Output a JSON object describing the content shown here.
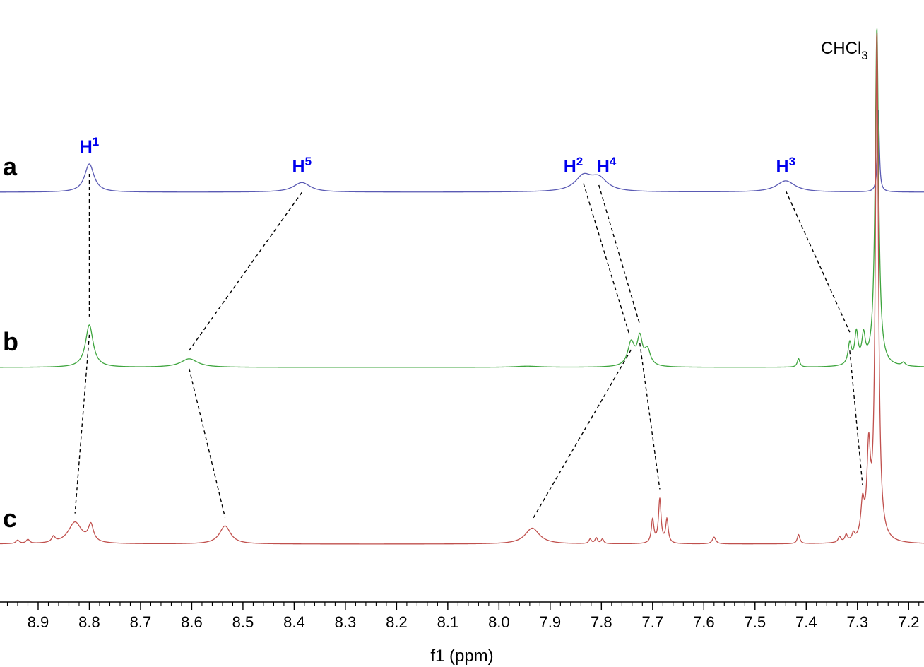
{
  "chart_data": {
    "type": "line",
    "xlabel": "f1 (ppm)",
    "xlim": [
      8.98,
      7.17
    ],
    "x_reversed": true,
    "ticks": [
      "8.9",
      "8.8",
      "8.7",
      "8.6",
      "8.5",
      "8.4",
      "8.3",
      "8.2",
      "8.1",
      "8.0",
      "7.9",
      "7.8",
      "7.7",
      "7.6",
      "7.5",
      "7.4",
      "7.3",
      "7.2"
    ],
    "grid": false,
    "solvent_label": {
      "text": "CHCl",
      "sub": "3",
      "ppm": 7.26
    },
    "peak_label_color": "#0000ee",
    "series": [
      {
        "label": "a",
        "color": "#5a5ab4",
        "baseline": 0.0,
        "peaks": [
          {
            "ppm": 8.8,
            "h": 0.5,
            "w": 0.011
          },
          {
            "ppm": 8.385,
            "h": 0.17,
            "w": 0.02
          },
          {
            "ppm": 7.835,
            "h": 0.26,
            "w": 0.02
          },
          {
            "ppm": 7.805,
            "h": 0.22,
            "w": 0.02
          },
          {
            "ppm": 7.44,
            "h": 0.2,
            "w": 0.022
          },
          {
            "ppm": 7.259,
            "h": 1.45,
            "w": 0.0022
          }
        ],
        "peak_labels": [
          {
            "text": "H",
            "sup": "1",
            "ppm": 8.8
          },
          {
            "text": "H",
            "sup": "5",
            "ppm": 8.385
          },
          {
            "text": "H",
            "sup": "2",
            "ppm": 7.855
          },
          {
            "text": "H",
            "sup": "4",
            "ppm": 7.79
          },
          {
            "text": "H",
            "sup": "3",
            "ppm": 7.44
          }
        ]
      },
      {
        "label": "b",
        "color": "#3ea53e",
        "baseline": 0.0,
        "peaks": [
          {
            "ppm": 8.8,
            "h": 0.75,
            "w": 0.009
          },
          {
            "ppm": 8.605,
            "h": 0.15,
            "w": 0.02
          },
          {
            "ppm": 7.945,
            "h": 0.02,
            "w": 0.03
          },
          {
            "ppm": 7.742,
            "h": 0.42,
            "w": 0.008
          },
          {
            "ppm": 7.725,
            "h": 0.48,
            "w": 0.006
          },
          {
            "ppm": 7.71,
            "h": 0.28,
            "w": 0.007
          },
          {
            "ppm": 7.415,
            "h": 0.15,
            "w": 0.003
          },
          {
            "ppm": 7.315,
            "h": 0.38,
            "w": 0.004
          },
          {
            "ppm": 7.302,
            "h": 0.55,
            "w": 0.004
          },
          {
            "ppm": 7.288,
            "h": 0.48,
            "w": 0.004
          },
          {
            "ppm": 7.262,
            "h": 6.0,
            "w": 0.004
          },
          {
            "ppm": 7.21,
            "h": 0.06,
            "w": 0.004
          }
        ]
      },
      {
        "label": "c",
        "color": "#c0504d",
        "baseline": 0.0,
        "peaks": [
          {
            "ppm": 8.94,
            "h": 0.06,
            "w": 0.004
          },
          {
            "ppm": 8.92,
            "h": 0.07,
            "w": 0.004
          },
          {
            "ppm": 8.87,
            "h": 0.1,
            "w": 0.004
          },
          {
            "ppm": 8.828,
            "h": 0.38,
            "w": 0.016
          },
          {
            "ppm": 8.797,
            "h": 0.3,
            "w": 0.006
          },
          {
            "ppm": 8.535,
            "h": 0.32,
            "w": 0.013
          },
          {
            "ppm": 7.935,
            "h": 0.28,
            "w": 0.017
          },
          {
            "ppm": 7.822,
            "h": 0.08,
            "w": 0.003
          },
          {
            "ppm": 7.81,
            "h": 0.1,
            "w": 0.003
          },
          {
            "ppm": 7.798,
            "h": 0.08,
            "w": 0.003
          },
          {
            "ppm": 7.7,
            "h": 0.42,
            "w": 0.003
          },
          {
            "ppm": 7.686,
            "h": 0.78,
            "w": 0.003
          },
          {
            "ppm": 7.672,
            "h": 0.42,
            "w": 0.003
          },
          {
            "ppm": 7.58,
            "h": 0.12,
            "w": 0.004
          },
          {
            "ppm": 7.415,
            "h": 0.16,
            "w": 0.003
          },
          {
            "ppm": 7.335,
            "h": 0.1,
            "w": 0.003
          },
          {
            "ppm": 7.322,
            "h": 0.12,
            "w": 0.003
          },
          {
            "ppm": 7.308,
            "h": 0.12,
            "w": 0.003
          },
          {
            "ppm": 7.29,
            "h": 0.6,
            "w": 0.004
          },
          {
            "ppm": 7.278,
            "h": 1.5,
            "w": 0.004
          },
          {
            "ppm": 7.262,
            "h": 9.0,
            "w": 0.0035
          }
        ]
      }
    ],
    "correlations": [
      {
        "from": {
          "series": 0,
          "ppm": 8.8
        },
        "to": {
          "series": 1,
          "ppm": 8.8
        }
      },
      {
        "from": {
          "series": 0,
          "ppm": 8.385
        },
        "to": {
          "series": 1,
          "ppm": 8.605
        }
      },
      {
        "from": {
          "series": 0,
          "ppm": 7.835
        },
        "to": {
          "series": 1,
          "ppm": 7.745
        }
      },
      {
        "from": {
          "series": 0,
          "ppm": 7.805
        },
        "to": {
          "series": 1,
          "ppm": 7.725
        }
      },
      {
        "from": {
          "series": 0,
          "ppm": 7.44
        },
        "to": {
          "series": 1,
          "ppm": 7.315
        }
      },
      {
        "from": {
          "series": 1,
          "ppm": 8.8
        },
        "to": {
          "series": 2,
          "ppm": 8.828
        }
      },
      {
        "from": {
          "series": 1,
          "ppm": 8.605
        },
        "to": {
          "series": 2,
          "ppm": 8.535
        }
      },
      {
        "from": {
          "series": 1,
          "ppm": 7.742
        },
        "to": {
          "series": 2,
          "ppm": 7.935
        }
      },
      {
        "from": {
          "series": 1,
          "ppm": 7.725
        },
        "to": {
          "series": 2,
          "ppm": 7.686
        }
      },
      {
        "from": {
          "series": 1,
          "ppm": 7.315
        },
        "to": {
          "series": 2,
          "ppm": 7.29
        }
      }
    ]
  }
}
